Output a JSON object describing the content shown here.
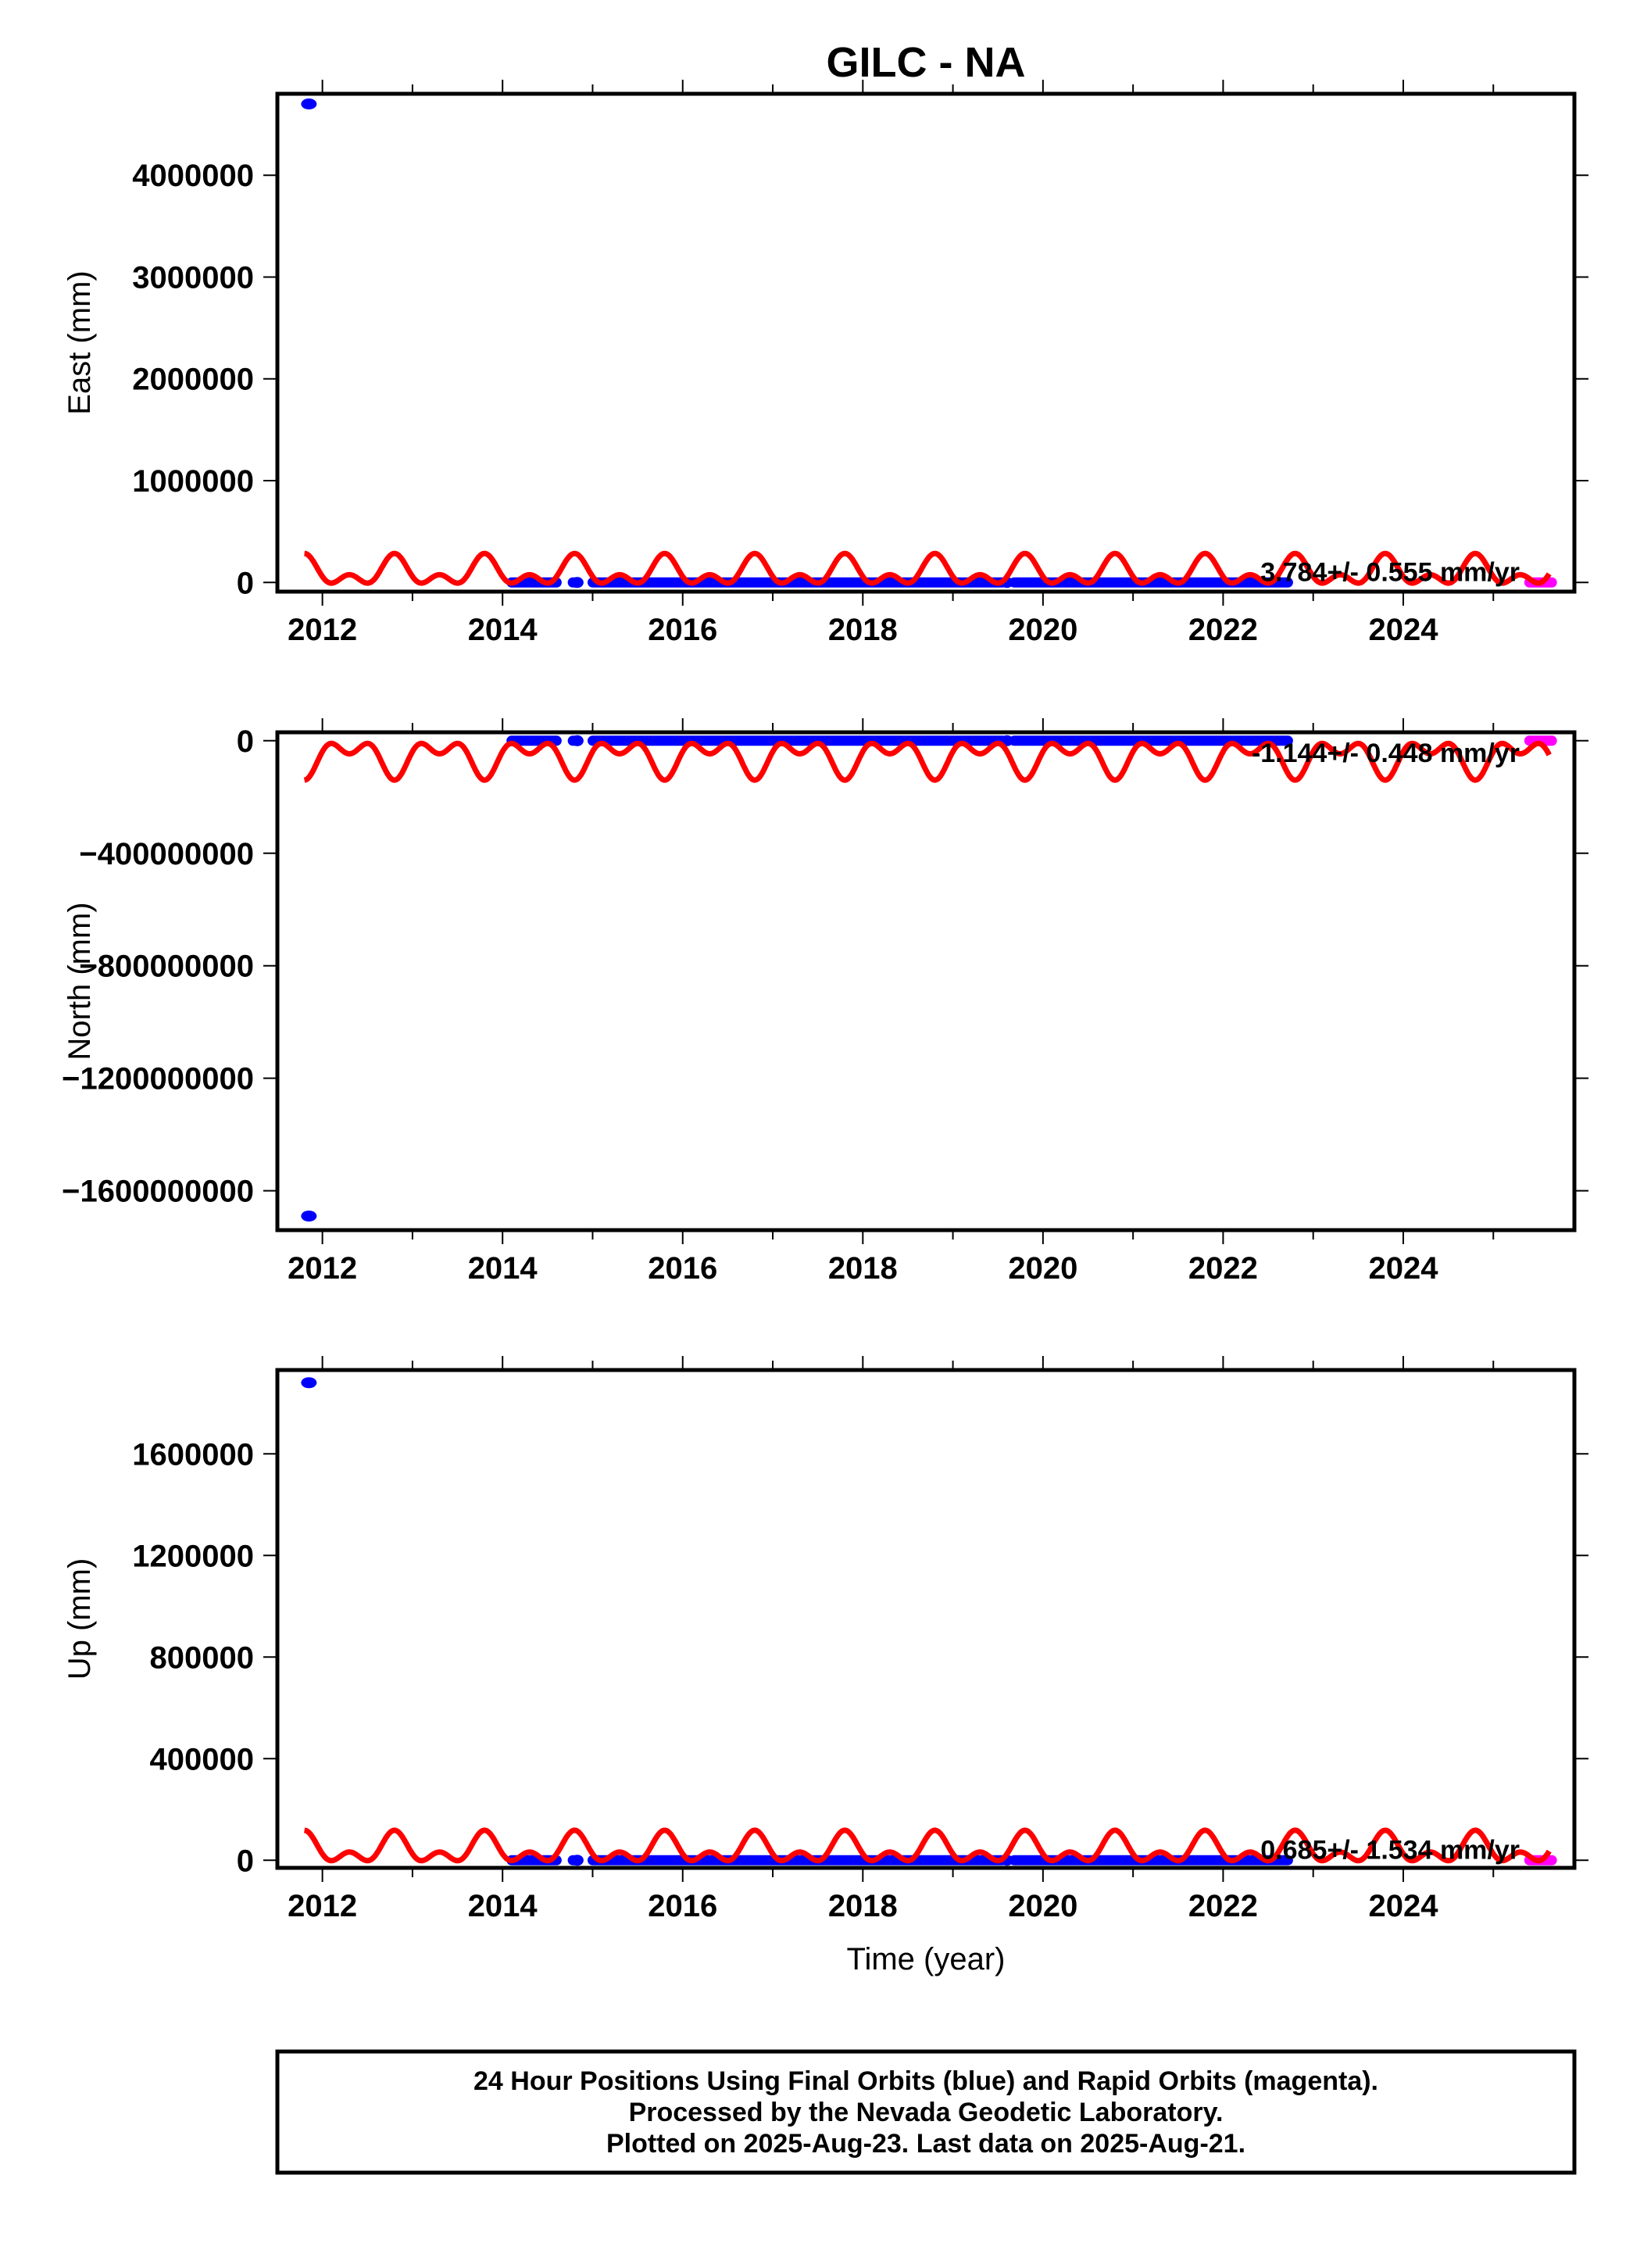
{
  "title": "GILC - NA",
  "xlabel": "Time (year)",
  "footer": {
    "lines": [
      "24 Hour Positions Using Final Orbits (blue) and Rapid Orbits (magenta).",
      "Processed by the Nevada Geodetic Laboratory.",
      "Plotted on 2025-Aug-23. Last data on 2025-Aug-21."
    ]
  },
  "colors": {
    "final": "#0000ff",
    "rapid": "#ff00ff",
    "model": "#ff0000",
    "axes": "#000000"
  },
  "chart_data": [
    {
      "type": "scatter",
      "name": "east",
      "ylabel": "East (mm)",
      "xlim": [
        2011.5,
        2025.9
      ],
      "ylim": [
        -90000,
        4800000
      ],
      "xticks": [
        2012,
        2014,
        2016,
        2018,
        2020,
        2022,
        2024
      ],
      "xtick_labels": [
        "2012",
        "2014",
        "2016",
        "2018",
        "2020",
        "2022",
        "2024"
      ],
      "yticks": [
        0,
        1000000,
        2000000,
        3000000,
        4000000
      ],
      "ytick_labels": [
        "0",
        "1000000",
        "2000000",
        "3000000",
        "4000000"
      ],
      "rate_label": "3.784+/- 0.555 mm/yr",
      "outliers": [
        {
          "x": 2011.85,
          "y": 4700000
        }
      ],
      "segments": [
        [
          2014.1,
          2014.6
        ],
        [
          2014.78,
          2014.83
        ],
        [
          2015.0,
          2019.55
        ],
        [
          2019.68,
          2022.72
        ]
      ],
      "rapid_range": [
        2025.4,
        2025.65
      ],
      "model": {
        "offset": 95000,
        "amplitude": 190000,
        "amplitude2": 0
      }
    },
    {
      "type": "scatter",
      "name": "north",
      "ylabel": "North (mm)",
      "xlim": [
        2011.5,
        2025.9
      ],
      "ylim": [
        -1740000000,
        30000000
      ],
      "xticks": [
        2012,
        2014,
        2016,
        2018,
        2020,
        2022,
        2024
      ],
      "xtick_labels": [
        "2012",
        "2014",
        "2016",
        "2018",
        "2020",
        "2022",
        "2024"
      ],
      "yticks": [
        0,
        -400000000,
        -800000000,
        -1200000000,
        -1600000000
      ],
      "ytick_labels": [
        "0",
        "−400000000",
        "−800000000",
        "−1200000000",
        "−1600000000"
      ],
      "rate_label": "-1.144+/- 0.448 mm/yr",
      "outliers": [
        {
          "x": 2011.85,
          "y": -1690000000
        }
      ],
      "segments": [
        [
          2014.1,
          2014.6
        ],
        [
          2014.78,
          2014.83
        ],
        [
          2015.0,
          2019.55
        ],
        [
          2019.68,
          2022.72
        ]
      ],
      "rapid_range": [
        2025.4,
        2025.65
      ],
      "model": {
        "offset": -55000000,
        "amplitude": -85000000,
        "amplitude2": 0
      }
    },
    {
      "type": "scatter",
      "name": "up",
      "ylabel": "Up (mm)",
      "xlim": [
        2011.5,
        2025.9
      ],
      "ylim": [
        -30000,
        1930000
      ],
      "xticks": [
        2012,
        2014,
        2016,
        2018,
        2020,
        2022,
        2024
      ],
      "xtick_labels": [
        "2012",
        "2014",
        "2016",
        "2018",
        "2020",
        "2022",
        "2024"
      ],
      "yticks": [
        0,
        400000,
        800000,
        1200000,
        1600000
      ],
      "ytick_labels": [
        "0",
        "400000",
        "800000",
        "1200000",
        "1600000"
      ],
      "rate_label": "0.685+/- 1.534 mm/yr",
      "outliers": [
        {
          "x": 2011.85,
          "y": 1880000
        }
      ],
      "segments": [
        [
          2014.1,
          2014.6
        ],
        [
          2014.78,
          2014.83
        ],
        [
          2015.0,
          2019.55
        ],
        [
          2019.68,
          2022.72
        ]
      ],
      "rapid_range": [
        2025.4,
        2025.65
      ],
      "model": {
        "offset": 40000,
        "amplitude": 78000,
        "amplitude2": 0
      }
    }
  ]
}
